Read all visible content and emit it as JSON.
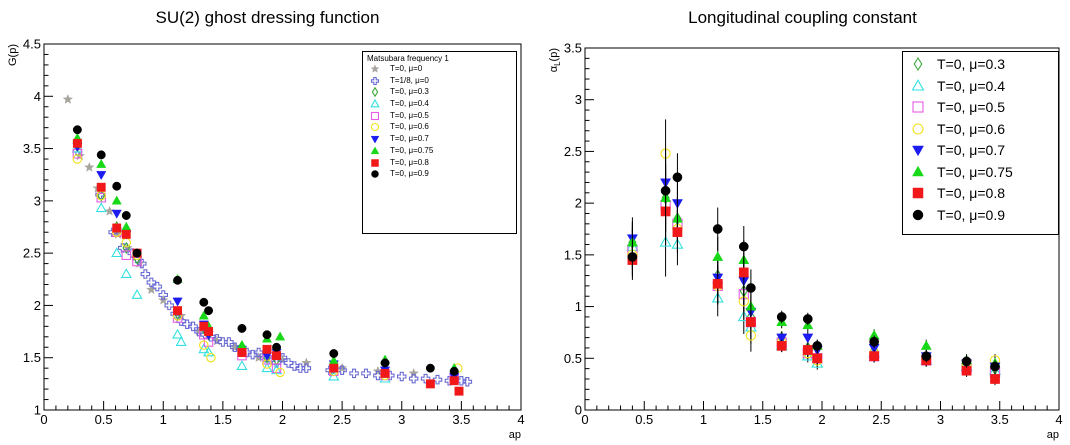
{
  "chart_data": [
    {
      "type": "scatter",
      "title": "SU(2) ghost dressing function",
      "xlabel": "ap",
      "ylabel": "G(p)",
      "xlim": [
        0,
        4
      ],
      "ylim": [
        1,
        4.5
      ],
      "x_ticks": [
        "0",
        "0.5",
        "1",
        "1.5",
        "2",
        "2.5",
        "3",
        "3.5",
        "4"
      ],
      "y_ticks": [
        "1",
        "1.5",
        "2",
        "2.5",
        "3",
        "3.5",
        "4",
        "4.5"
      ],
      "legend_title": "Matsubara frequency 1",
      "legend_position": "top-right",
      "series": [
        {
          "name": "T=0, μ=0",
          "marker": "star",
          "color": "#a8a59e",
          "x": [
            0.2,
            0.3,
            0.38,
            0.45,
            0.55,
            0.62,
            0.7,
            0.8,
            0.9,
            1.0,
            1.15,
            1.3,
            1.45,
            1.6,
            1.8,
            2.0,
            2.2,
            2.5,
            2.8,
            3.1
          ],
          "y": [
            3.97,
            3.43,
            3.32,
            3.12,
            2.9,
            2.68,
            2.55,
            2.4,
            2.15,
            2.05,
            1.9,
            1.75,
            1.66,
            1.6,
            1.5,
            1.48,
            1.45,
            1.4,
            1.37,
            1.35
          ]
        },
        {
          "name": "T=1/8, μ=0",
          "marker": "cross-open",
          "color": "#6b6bd6",
          "x": [
            0.28,
            0.47,
            0.58,
            0.66,
            0.74,
            0.78,
            0.82,
            0.85,
            0.9,
            0.95,
            1.0,
            1.05,
            1.1,
            1.15,
            1.2,
            1.25,
            1.3,
            1.35,
            1.4,
            1.45,
            1.5,
            1.55,
            1.6,
            1.65,
            1.7,
            1.75,
            1.8,
            1.85,
            1.9,
            1.95,
            2.0,
            2.05,
            2.1,
            2.15,
            2.2,
            2.4,
            2.5,
            2.6,
            2.7,
            2.8,
            2.9,
            3.0,
            3.1,
            3.2,
            3.3,
            3.4,
            3.5,
            3.55
          ],
          "y": [
            3.48,
            3.06,
            2.7,
            2.55,
            2.5,
            2.45,
            2.4,
            2.3,
            2.22,
            2.18,
            2.1,
            2.0,
            1.92,
            1.85,
            1.82,
            1.8,
            1.75,
            1.72,
            1.7,
            1.68,
            1.65,
            1.65,
            1.6,
            1.58,
            1.55,
            1.53,
            1.55,
            1.5,
            1.48,
            1.45,
            1.5,
            1.45,
            1.42,
            1.4,
            1.4,
            1.38,
            1.38,
            1.35,
            1.35,
            1.33,
            1.33,
            1.32,
            1.3,
            1.3,
            1.29,
            1.28,
            1.28,
            1.27
          ]
        },
        {
          "name": "T=0, μ=0.3",
          "marker": "diamond-open",
          "color": "#3aa73a",
          "x": [
            0.28,
            0.48,
            0.61,
            0.69,
            0.78,
            1.12,
            1.34,
            1.38,
            1.66,
            1.87,
            1.95,
            2.43,
            2.86,
            3.44
          ],
          "y": [
            3.52,
            3.05,
            2.75,
            2.55,
            2.45,
            1.92,
            1.78,
            1.72,
            1.6,
            1.5,
            1.48,
            1.4,
            1.36,
            1.35
          ]
        },
        {
          "name": "T=0, μ=0.4",
          "marker": "triangle-up-open",
          "color": "#33e0e0",
          "x": [
            0.28,
            0.48,
            0.61,
            0.69,
            0.78,
            1.12,
            1.15,
            1.34,
            1.38,
            1.66,
            1.87,
            1.95,
            2.43,
            2.86,
            3.44
          ],
          "y": [
            3.5,
            2.93,
            2.5,
            2.3,
            2.1,
            1.72,
            1.65,
            1.58,
            1.55,
            1.42,
            1.4,
            1.38,
            1.32,
            1.3,
            1.32
          ]
        },
        {
          "name": "T=0, μ=0.5",
          "marker": "square-open",
          "color": "#e65ce6",
          "x": [
            0.28,
            0.48,
            0.61,
            0.69,
            0.78,
            1.12,
            1.34,
            1.38,
            1.66,
            1.87,
            1.95,
            2.43,
            2.86,
            3.44
          ],
          "y": [
            3.45,
            3.03,
            2.7,
            2.48,
            2.42,
            1.88,
            1.72,
            1.65,
            1.52,
            1.48,
            1.4,
            1.37,
            1.33,
            1.3
          ]
        },
        {
          "name": "T=0, μ=0.6",
          "marker": "circle-open",
          "color": "#f2e11b",
          "x": [
            0.28,
            0.48,
            0.61,
            0.69,
            0.78,
            1.12,
            1.34,
            1.4,
            1.66,
            1.87,
            1.98,
            2.43,
            2.86,
            3.47
          ],
          "y": [
            3.4,
            3.05,
            2.7,
            2.6,
            2.48,
            1.9,
            1.62,
            1.5,
            1.55,
            1.44,
            1.36,
            1.37,
            1.33,
            1.4
          ]
        },
        {
          "name": "T=0, μ=0.7",
          "marker": "triangle-down",
          "color": "#1c1cf0",
          "x": [
            0.28,
            0.48,
            0.61,
            0.69,
            0.78,
            1.12,
            1.34,
            1.38,
            1.66,
            1.87,
            1.95,
            2.43,
            2.86,
            3.44
          ],
          "y": [
            3.52,
            3.25,
            2.88,
            2.68,
            2.5,
            2.04,
            1.82,
            1.72,
            1.58,
            1.52,
            1.55,
            1.44,
            1.38,
            1.32
          ]
        },
        {
          "name": "T=0, μ=0.75",
          "marker": "triangle-up",
          "color": "#18d918",
          "x": [
            0.28,
            0.48,
            0.61,
            0.69,
            0.78,
            1.12,
            1.34,
            1.38,
            1.66,
            1.87,
            1.98,
            2.43,
            2.86,
            3.44
          ],
          "y": [
            3.6,
            3.35,
            3.0,
            2.75,
            2.5,
            2.25,
            1.9,
            1.8,
            1.62,
            1.68,
            1.7,
            1.47,
            1.48,
            1.4
          ]
        },
        {
          "name": "T=0, μ=0.8",
          "marker": "square",
          "color": "#f01818",
          "x": [
            0.28,
            0.48,
            0.61,
            0.69,
            0.78,
            1.12,
            1.34,
            1.38,
            1.66,
            1.87,
            1.95,
            2.43,
            2.86,
            3.24,
            3.44,
            3.48
          ],
          "y": [
            3.55,
            3.13,
            2.74,
            2.68,
            2.5,
            1.95,
            1.8,
            1.75,
            1.55,
            1.58,
            1.52,
            1.4,
            1.35,
            1.25,
            1.28,
            1.18
          ]
        },
        {
          "name": "T=0, μ=0.9",
          "marker": "circle",
          "color": "#000000",
          "x": [
            0.28,
            0.48,
            0.61,
            0.69,
            0.78,
            1.12,
            1.34,
            1.38,
            1.66,
            1.87,
            1.95,
            2.43,
            2.86,
            3.24,
            3.44
          ],
          "y": [
            3.68,
            3.44,
            3.14,
            2.86,
            2.5,
            2.24,
            2.03,
            1.95,
            1.78,
            1.72,
            1.6,
            1.54,
            1.45,
            1.4,
            1.37
          ]
        }
      ]
    },
    {
      "type": "scatter",
      "title": "Longitudinal coupling constant",
      "xlabel": "ap",
      "ylabel": "α_L(p)",
      "ylabel_main": "α",
      "ylabel_sub": "L",
      "ylabel_suffix": "(p)",
      "xlim": [
        0,
        4
      ],
      "ylim": [
        0,
        3.5
      ],
      "x_ticks": [
        "0",
        "0.5",
        "1",
        "1.5",
        "2",
        "2.5",
        "3",
        "3.5",
        "4"
      ],
      "y_ticks": [
        "0",
        "0.5",
        "1",
        "1.5",
        "2",
        "2.5",
        "3",
        "3.5"
      ],
      "legend_position": "top-right",
      "series": [
        {
          "name": "T=0, μ=0.3",
          "marker": "diamond-open",
          "color": "#3aa73a",
          "x": [
            0.4,
            0.68,
            0.78,
            1.12,
            1.34,
            1.4,
            1.66,
            1.88,
            1.96,
            2.44,
            2.88,
            3.22,
            3.46
          ],
          "y": [
            1.62,
            2.05,
            1.85,
            1.3,
            1.15,
            0.9,
            0.7,
            0.6,
            0.5,
            0.58,
            0.5,
            0.45,
            0.4
          ]
        },
        {
          "name": "T=0, μ=0.4",
          "marker": "triangle-up-open",
          "color": "#33e0e0",
          "x": [
            0.4,
            0.68,
            0.78,
            1.12,
            1.34,
            1.4,
            1.66,
            1.88,
            1.96,
            2.44,
            2.88,
            3.22,
            3.46
          ],
          "y": [
            1.58,
            1.62,
            1.6,
            1.08,
            0.9,
            0.8,
            0.62,
            0.52,
            0.45,
            0.55,
            0.48,
            0.42,
            0.38
          ]
        },
        {
          "name": "T=0, μ=0.5",
          "marker": "square-open",
          "color": "#e65ce6",
          "x": [
            0.4,
            0.68,
            0.78,
            1.12,
            1.34,
            1.4,
            1.66,
            1.88,
            1.96,
            2.44,
            2.88,
            3.22,
            3.46
          ],
          "y": [
            1.55,
            1.98,
            1.8,
            1.2,
            1.12,
            0.85,
            0.65,
            0.55,
            0.5,
            0.52,
            0.48,
            0.4,
            0.36
          ]
        },
        {
          "name": "T=0, μ=0.6",
          "marker": "circle-open",
          "color": "#f2e11b",
          "x": [
            0.4,
            0.68,
            0.78,
            1.12,
            1.34,
            1.4,
            1.66,
            1.88,
            1.96,
            2.44,
            2.88,
            3.22,
            3.46
          ],
          "y": [
            1.5,
            2.48,
            1.75,
            1.2,
            1.05,
            0.72,
            0.65,
            0.55,
            0.48,
            0.55,
            0.5,
            0.42,
            0.48
          ]
        },
        {
          "name": "T=0, μ=0.7",
          "marker": "triangle-down",
          "color": "#1c1cf0",
          "x": [
            0.4,
            0.68,
            0.78,
            1.12,
            1.34,
            1.4,
            1.66,
            1.88,
            1.96,
            2.44,
            2.88,
            3.22,
            3.46
          ],
          "y": [
            1.66,
            2.2,
            2.0,
            1.28,
            1.25,
            0.95,
            0.7,
            0.7,
            0.58,
            0.6,
            0.52,
            0.45,
            0.42
          ]
        },
        {
          "name": "T=0, μ=0.75",
          "marker": "triangle-up",
          "color": "#18d918",
          "x": [
            0.4,
            0.68,
            0.78,
            1.12,
            1.34,
            1.4,
            1.66,
            1.88,
            1.96,
            2.44,
            2.88,
            3.22,
            3.46
          ],
          "y": [
            1.62,
            2.05,
            1.85,
            1.48,
            1.45,
            1.0,
            0.85,
            0.82,
            0.62,
            0.72,
            0.62,
            0.48,
            0.45
          ]
        },
        {
          "name": "T=0, μ=0.8",
          "marker": "square",
          "color": "#f01818",
          "x": [
            0.4,
            0.68,
            0.78,
            1.12,
            1.34,
            1.4,
            1.66,
            1.88,
            1.96,
            2.44,
            2.88,
            3.22,
            3.46
          ],
          "y": [
            1.45,
            1.92,
            1.72,
            1.22,
            1.33,
            0.85,
            0.62,
            0.58,
            0.5,
            0.52,
            0.48,
            0.38,
            0.3
          ]
        },
        {
          "name": "T=0, μ=0.9",
          "marker": "circle",
          "color": "#000000",
          "x": [
            0.4,
            0.68,
            0.78,
            1.12,
            1.34,
            1.4,
            1.66,
            1.88,
            1.96,
            2.44,
            2.88,
            3.22,
            3.46
          ],
          "y": [
            1.48,
            2.12,
            2.25,
            1.75,
            1.58,
            1.18,
            0.9,
            0.88,
            0.62,
            0.66,
            0.52,
            0.47,
            0.42
          ]
        }
      ]
    }
  ]
}
